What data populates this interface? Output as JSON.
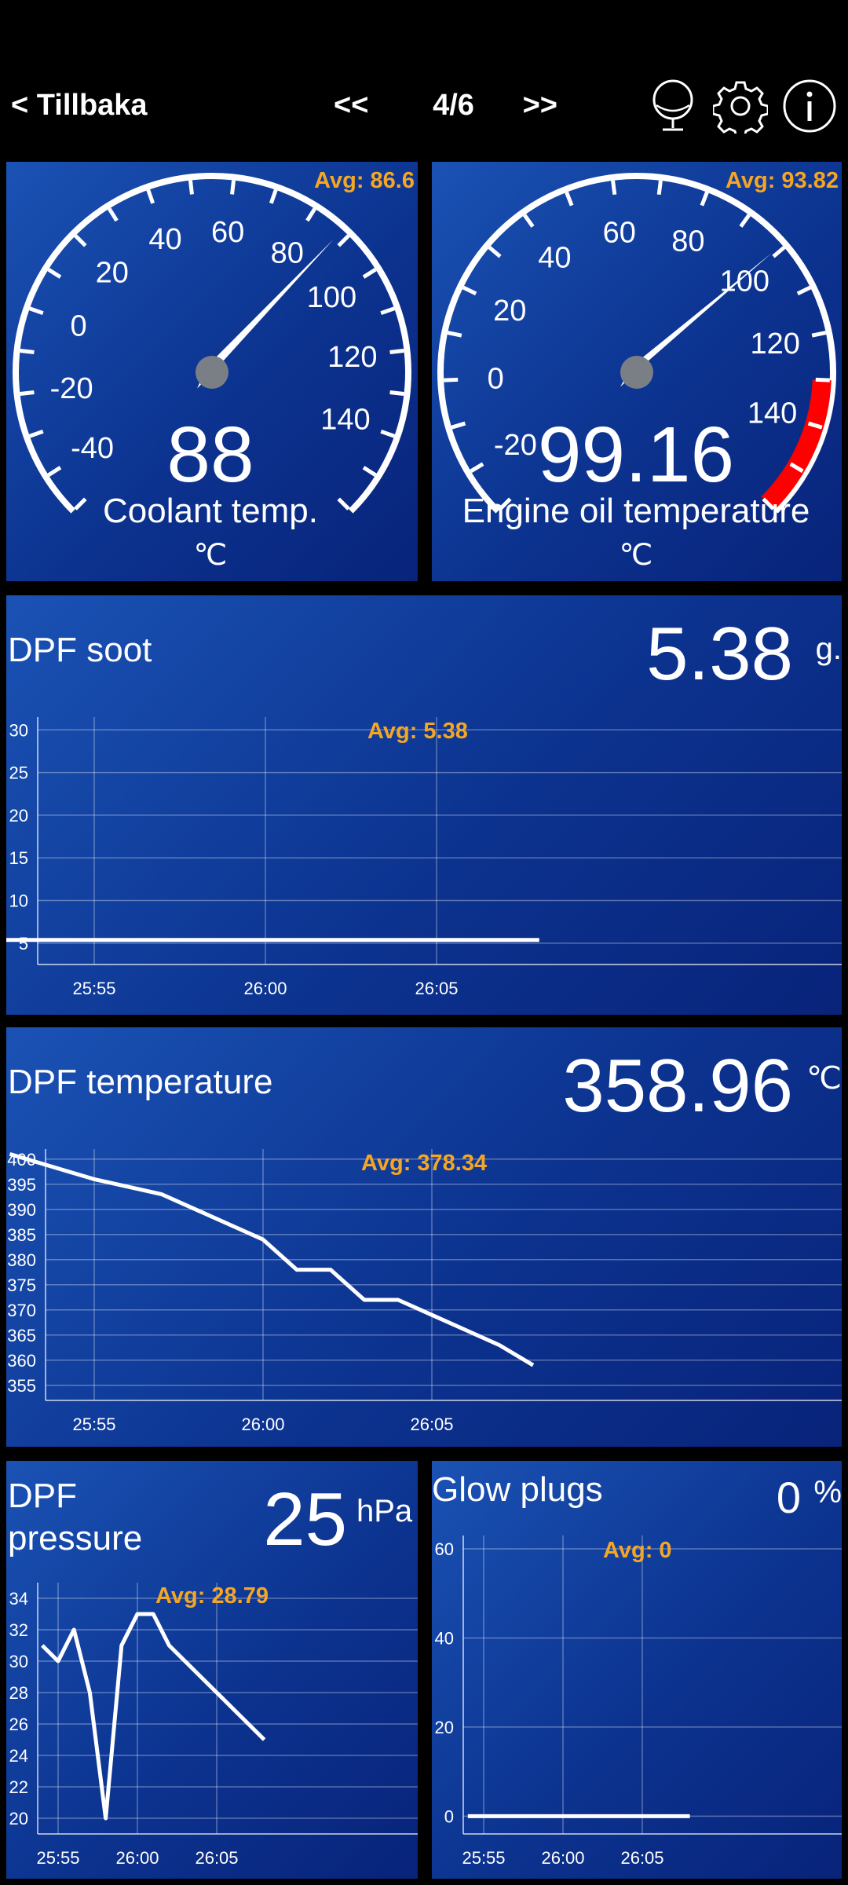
{
  "topbar": {
    "back_label": "< Tillbaka",
    "prev_label": "<<",
    "page_indicator": "4/6",
    "next_label": ">>",
    "icons": [
      "microphone-icon",
      "gear-icon",
      "info-icon"
    ]
  },
  "gauges": [
    {
      "label": "Coolant temp.",
      "unit": "℃",
      "value": "88",
      "avg": "Avg: 86.6",
      "ticks": [
        "-40",
        "-20",
        "0",
        "20",
        "40",
        "60",
        "80",
        "100",
        "120",
        "140"
      ],
      "min": -50,
      "max": 160,
      "needle": 88,
      "redzone": null
    },
    {
      "label": "Engine oil temperature",
      "unit": "℃",
      "value": "99.16",
      "avg": "Avg: 93.82",
      "ticks": [
        "-20",
        "0",
        "20",
        "40",
        "60",
        "80",
        "100",
        "120",
        "140"
      ],
      "min": -30,
      "max": 160,
      "needle": 99.16,
      "redzone": [
        130,
        160
      ],
      "redzone_color": "#ff0000"
    }
  ],
  "charts": {
    "dpf_soot": {
      "title": "DPF soot",
      "value": "5.38",
      "unit": "g.",
      "avg": "Avg: 5.38"
    },
    "dpf_temp": {
      "title": "DPF temperature",
      "value": "358.96",
      "unit": "℃",
      "avg": "Avg: 378.34"
    },
    "dpf_pressure": {
      "title_line1": "DPF",
      "title_line2": "pressure",
      "value": "25",
      "unit": "hPa",
      "avg": "Avg: 28.79"
    },
    "glow_plugs": {
      "title": "Glow plugs",
      "value": "0",
      "unit": "%",
      "avg": "Avg: 0"
    }
  },
  "chart_data": [
    {
      "type": "line",
      "title": "DPF soot",
      "x_ticks": [
        "25:55",
        "26:00",
        "26:05"
      ],
      "y_ticks": [
        5,
        10,
        15,
        20,
        25,
        30
      ],
      "ylim": [
        2.5,
        31.5
      ],
      "x": [
        "25:51",
        "25:55",
        "26:00",
        "26:05",
        "26:08"
      ],
      "series": [
        {
          "values": [
            5.38,
            5.38,
            5.38,
            5.38,
            5.38
          ]
        }
      ],
      "grid": true
    },
    {
      "type": "line",
      "title": "DPF temperature",
      "x_ticks": [
        "25:55",
        "26:00",
        "26:05"
      ],
      "y_ticks": [
        355,
        360,
        365,
        370,
        375,
        380,
        385,
        390,
        395,
        400
      ],
      "ylim": [
        352,
        402
      ],
      "x": [
        "25:52.5",
        "25:54",
        "25:55",
        "25:57",
        "25:58",
        "25:59",
        "26:00",
        "26:01",
        "26:02",
        "26:03",
        "26:04",
        "26:05",
        "26:06",
        "26:07",
        "26:08"
      ],
      "series": [
        {
          "values": [
            401,
            398,
            396,
            393,
            390,
            387,
            384,
            378,
            378,
            372,
            372,
            369,
            366,
            363,
            359
          ]
        }
      ],
      "grid": true
    },
    {
      "type": "line",
      "title": "DPF pressure",
      "x_ticks": [
        "25:55",
        "26:00",
        "26:05"
      ],
      "y_ticks": [
        20,
        22,
        24,
        26,
        28,
        30,
        32,
        34
      ],
      "ylim": [
        19,
        35
      ],
      "x": [
        "25:54",
        "25:55",
        "25:56",
        "25:57",
        "25:58",
        "25:59",
        "26:00",
        "26:01",
        "26:02",
        "26:03",
        "26:04",
        "26:05",
        "26:06",
        "26:07",
        "26:08"
      ],
      "series": [
        {
          "values": [
            31,
            30,
            32,
            28,
            20,
            31,
            33,
            33,
            31,
            30,
            29,
            28,
            27,
            26,
            25
          ]
        }
      ],
      "grid": true
    },
    {
      "type": "line",
      "title": "Glow plugs",
      "x_ticks": [
        "25:55",
        "26:00",
        "26:05"
      ],
      "y_ticks": [
        0,
        20,
        40,
        60
      ],
      "ylim": [
        -4,
        63
      ],
      "x": [
        "25:54",
        "25:55",
        "26:00",
        "26:05",
        "26:08"
      ],
      "series": [
        {
          "values": [
            0,
            0,
            0,
            0,
            0
          ]
        }
      ],
      "grid": true
    }
  ]
}
